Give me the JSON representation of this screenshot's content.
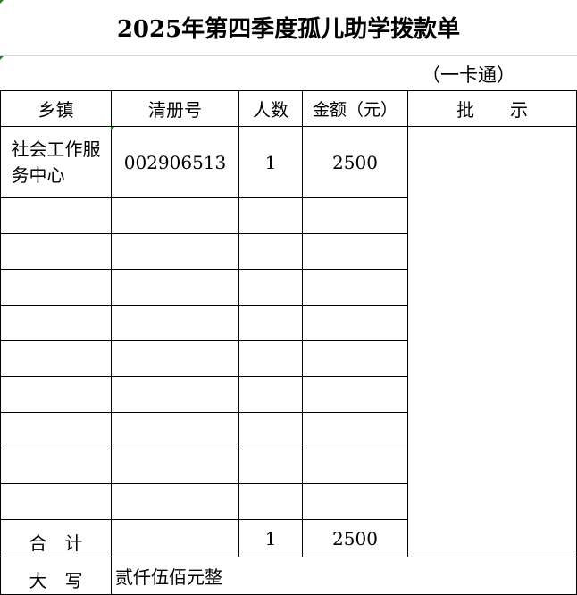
{
  "title": "2025年第四季度孤儿助学拨款单",
  "subtitle": "（一卡通）",
  "headers": {
    "town": "乡镇",
    "register_no": "清册号",
    "count": "人数",
    "amount": "金额（元）",
    "approval": "批　　示"
  },
  "rows": [
    {
      "town": "社会工作服务中心",
      "register_no": "002906513",
      "count": "1",
      "amount": "2500"
    }
  ],
  "total": {
    "label": "合　计",
    "count": "1",
    "amount": "2500"
  },
  "in_words": {
    "label": "大　写",
    "value": "贰仟伍佰元整"
  }
}
